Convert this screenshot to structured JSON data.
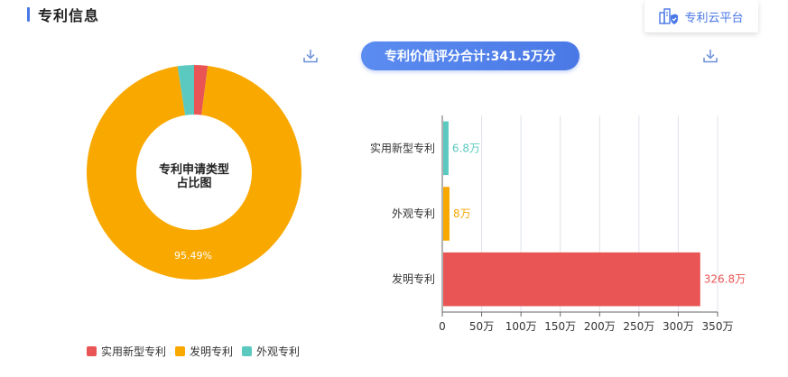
{
  "header": {
    "title": "专利信息",
    "cloud_button_label": "专利云平台"
  },
  "badge": {
    "text": "专利价值评分合计:341.5万分"
  },
  "colors": {
    "accent": "#4a78e6",
    "red": "#e85554",
    "orange": "#f9a800",
    "teal": "#5cc9c0"
  },
  "icons": {
    "download": "download-icon",
    "cloud": "building-shield-icon"
  },
  "chart_data": [
    {
      "type": "pie",
      "center_label_line1": "专利申请类型",
      "center_label_line2": "占比图",
      "slices": [
        {
          "name": "实用新型专利",
          "value": 2.04,
          "color": "#e85554"
        },
        {
          "name": "发明专利",
          "value": 95.49,
          "color": "#f9a800",
          "label": "95.49%"
        },
        {
          "name": "外观专利",
          "value": 2.47,
          "color": "#5cc9c0"
        }
      ],
      "legend": [
        {
          "name": "实用新型专利",
          "color": "#e85554"
        },
        {
          "name": "发明专利",
          "color": "#f9a800"
        },
        {
          "name": "外观专利",
          "color": "#5cc9c0"
        }
      ],
      "legend_position": "bottom-left"
    },
    {
      "type": "bar",
      "orientation": "horizontal",
      "categories": [
        "实用新型专利",
        "外观专利",
        "发明专利"
      ],
      "values": [
        6.8,
        8,
        326.8
      ],
      "value_labels": [
        "6.8万",
        "8万",
        "326.8万"
      ],
      "colors": [
        "#5cc9c0",
        "#f9a800",
        "#e85554"
      ],
      "xlim": [
        0,
        350
      ],
      "ticks": [
        "0",
        "50万",
        "100万",
        "150万",
        "200万",
        "250万",
        "300万",
        "350万"
      ],
      "grid": true
    }
  ]
}
